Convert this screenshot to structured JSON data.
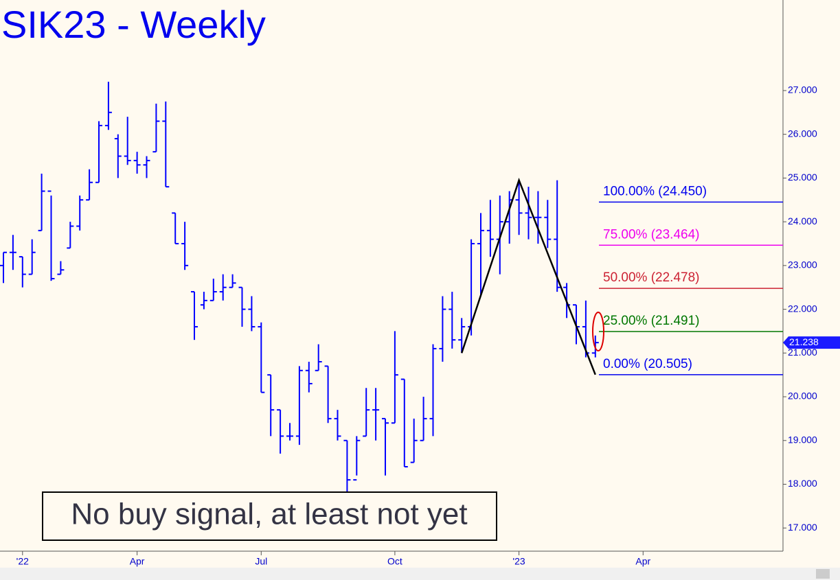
{
  "chart_data": {
    "type": "ohlc",
    "title": "SIK23 - Weekly",
    "annotation": "No buy signal, at least not yet",
    "categories": [
      null,
      null,
      "'22",
      null,
      null,
      null,
      null,
      null,
      null,
      null,
      null,
      null,
      null,
      null,
      "Apr",
      null,
      null,
      null,
      null,
      null,
      null,
      null,
      null,
      null,
      null,
      null,
      null,
      "Jul",
      null,
      null,
      null,
      null,
      null,
      null,
      null,
      null,
      null,
      null,
      null,
      null,
      null,
      "Oct",
      null,
      null,
      null,
      null,
      null,
      null,
      null,
      null,
      null,
      null,
      null,
      null,
      "'23",
      null,
      null,
      null,
      null,
      null,
      null,
      null,
      null,
      null,
      null,
      null,
      null,
      "Apr",
      null,
      null,
      null,
      null,
      null,
      null,
      null,
      null,
      null,
      null,
      null,
      null,
      null,
      null
    ],
    "open": [
      23.0,
      23.3,
      23.2,
      22.8,
      23.8,
      24.7,
      22.8,
      23.4,
      23.9,
      24.5,
      24.9,
      26.2,
      25.9,
      25.5,
      25.4,
      25.3,
      25.6,
      26.3,
      24.2,
      23.5,
      22.4,
      22.1,
      22.2,
      22.4,
      22.5,
      22.5,
      22.0,
      21.6,
      20.5,
      19.7,
      19.1,
      19.1,
      20.6,
      20.6,
      20.7,
      19.5,
      19.0,
      18.1,
      19.1,
      19.7,
      19.5,
      19.4,
      20.4,
      18.5,
      19.0,
      19.5,
      21.1,
      22.0,
      21.3,
      21.6,
      23.5,
      23.8,
      23.6,
      24.0,
      24.5,
      24.2,
      24.1,
      24.1,
      23.6,
      22.5,
      22.1,
      21.6,
      21.0,
      null,
      null,
      null,
      null,
      null,
      null,
      null,
      null,
      null,
      null,
      null,
      null,
      null,
      null,
      null,
      null,
      null,
      null,
      null
    ],
    "high": [
      23.3,
      23.7,
      23.2,
      23.6,
      25.1,
      24.6,
      23.1,
      24.0,
      24.6,
      25.2,
      26.3,
      27.2,
      26.0,
      26.4,
      25.6,
      25.5,
      26.7,
      26.75,
      24.2,
      24.0,
      22.4,
      22.4,
      22.7,
      22.8,
      22.8,
      22.5,
      22.3,
      21.7,
      20.5,
      19.7,
      19.4,
      20.7,
      20.8,
      21.2,
      20.7,
      19.7,
      19.0,
      19.1,
      20.2,
      20.2,
      19.5,
      21.5,
      20.4,
      19.5,
      20.0,
      21.2,
      22.3,
      22.4,
      21.8,
      23.6,
      24.2,
      24.5,
      24.6,
      24.7,
      24.9,
      24.8,
      24.7,
      24.5,
      24.95,
      22.6,
      22.1,
      22.2,
      21.4,
      null,
      null,
      null,
      null,
      null,
      null,
      null,
      null,
      null,
      null,
      null,
      null,
      null,
      null,
      null,
      null,
      null,
      null,
      null
    ],
    "low": [
      22.6,
      22.9,
      22.5,
      22.8,
      23.8,
      22.65,
      22.8,
      23.4,
      23.8,
      24.5,
      24.9,
      26.1,
      25.0,
      25.3,
      25.1,
      25.0,
      25.6,
      24.8,
      23.5,
      22.9,
      21.3,
      22.0,
      22.2,
      22.2,
      22.5,
      21.6,
      21.5,
      20.1,
      19.1,
      18.7,
      19.0,
      18.9,
      20.1,
      20.6,
      19.4,
      19.0,
      17.75,
      18.2,
      19.1,
      19.0,
      18.2,
      19.4,
      18.4,
      18.5,
      19.0,
      19.1,
      20.8,
      21.1,
      21.0,
      21.4,
      22.3,
      23.2,
      22.8,
      23.5,
      23.7,
      23.6,
      23.5,
      23.4,
      22.4,
      21.8,
      21.2,
      20.9,
      20.9,
      null,
      null,
      null,
      null,
      null,
      null,
      null,
      null,
      null,
      null,
      null,
      null,
      null,
      null,
      null,
      null,
      null,
      null,
      null
    ],
    "close": [
      23.3,
      23.3,
      22.8,
      23.3,
      24.7,
      22.7,
      22.9,
      23.9,
      24.5,
      24.9,
      26.2,
      26.5,
      25.5,
      25.4,
      25.3,
      25.4,
      26.3,
      24.8,
      23.5,
      23.0,
      21.6,
      22.2,
      22.4,
      22.5,
      22.6,
      22.0,
      21.6,
      20.1,
      19.7,
      19.1,
      19.1,
      20.6,
      20.3,
      20.8,
      19.5,
      19.1,
      18.1,
      19.0,
      19.7,
      19.7,
      19.4,
      20.5,
      18.4,
      19.0,
      19.5,
      21.1,
      22.0,
      21.3,
      21.6,
      23.5,
      23.8,
      23.6,
      24.0,
      24.5,
      24.2,
      24.1,
      24.1,
      23.6,
      22.5,
      22.1,
      21.6,
      21.0,
      21.238,
      null,
      null,
      null,
      null,
      null,
      null,
      null,
      null,
      null,
      null,
      null,
      null,
      null,
      null,
      null,
      null,
      null,
      null,
      null
    ],
    "color": "#0000ff",
    "pattern": {
      "x": [
        48,
        54,
        62
      ],
      "values": [
        21.0,
        24.95,
        20.505
      ],
      "color": "#000000"
    },
    "levels": [
      {
        "label": "100.00% (24.450)",
        "value": 24.45,
        "color": "#0000ee"
      },
      {
        "label": "75.00% (23.464)",
        "value": 23.464,
        "color": "#ee00ee"
      },
      {
        "label": "50.00% (22.478)",
        "value": 22.478,
        "color": "#cc2233"
      },
      {
        "label": "25.00% (21.491)",
        "value": 21.491,
        "color": "#007700"
      },
      {
        "label": "0.00% (20.505)",
        "value": 20.505,
        "color": "#0000ee"
      }
    ],
    "last": {
      "value": 21.238,
      "label": "21.238"
    },
    "ylim": [
      16.47,
      29.07
    ],
    "yticks": [
      {
        "value": 17,
        "label": "17.000"
      },
      {
        "value": 18,
        "label": "18.000"
      },
      {
        "value": 19,
        "label": "19.000"
      },
      {
        "value": 20,
        "label": "20.000"
      },
      {
        "value": 21,
        "label": "21.000"
      },
      {
        "value": 22,
        "label": "22.000"
      },
      {
        "value": 23,
        "label": "23.000"
      },
      {
        "value": 24,
        "label": "24.000"
      },
      {
        "value": 25,
        "label": "25.000"
      },
      {
        "value": 26,
        "label": "26.000"
      },
      {
        "value": 27,
        "label": "27.000"
      }
    ],
    "grid": false
  }
}
